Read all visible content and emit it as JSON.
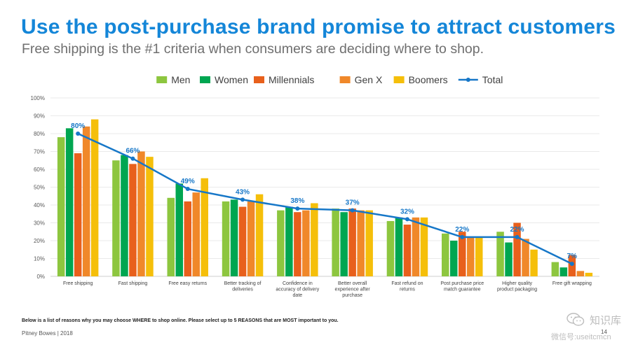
{
  "slide": {
    "title": "Use the post-purchase brand promise to attract customers",
    "subtitle": "Free shipping is the #1 criteria when consumers are deciding where to shop.",
    "question": "Below is a list of reasons why you may choose WHERE to shop online. Please select up to 5 REASONS that are MOST important to you.",
    "footer": "Pitney Bowes | 2018",
    "page_number": "14"
  },
  "watermark": {
    "brand": "知识库",
    "id_text": "微信号:useitcmcn",
    "icon": "wechat-icon"
  },
  "chart_data": {
    "type": "bar",
    "categories": [
      [
        "Free shipping"
      ],
      [
        "Fast shipping"
      ],
      [
        "Free easy returns"
      ],
      [
        "Better tracking of",
        "deliveries"
      ],
      [
        "Confidence in",
        "accuracy of delivery",
        "date"
      ],
      [
        "Better overall",
        "experience after",
        "purchase"
      ],
      [
        "Fast refund on",
        "returns"
      ],
      [
        "Post purchase price",
        "match guarantee"
      ],
      [
        "Higher quality",
        "product packaging"
      ],
      [
        "Free gift wrapping"
      ]
    ],
    "series": [
      {
        "name": "Men",
        "color": "#8dc63f",
        "values": [
          78,
          65,
          44,
          42,
          37,
          38,
          31,
          24,
          25,
          8
        ]
      },
      {
        "name": "Women",
        "color": "#00a651",
        "values": [
          83,
          68,
          52,
          43,
          39,
          36,
          33,
          20,
          19,
          5
        ]
      },
      {
        "name": "Millennials",
        "color": "#e8601c",
        "values": [
          69,
          63,
          42,
          39,
          36,
          38,
          29,
          25,
          30,
          12
        ]
      },
      {
        "name": "Gen X",
        "color": "#f0882a",
        "values": [
          84,
          70,
          47,
          42,
          37,
          37,
          33,
          22,
          21,
          3
        ]
      },
      {
        "name": "Boomers",
        "color": "#f5bf0a",
        "values": [
          88,
          67,
          55,
          46,
          41,
          37,
          33,
          22,
          15,
          2
        ]
      }
    ],
    "line": {
      "name": "Total",
      "color": "#1677c8",
      "values": [
        80,
        66,
        49,
        43,
        38,
        37,
        32,
        22,
        22,
        7
      ],
      "labels": [
        "80%",
        "66%",
        "49%",
        "43%",
        "38%",
        "37%",
        "32%",
        "22%",
        "22%",
        "7%"
      ]
    },
    "y_ticks": [
      "0%",
      "10%",
      "20%",
      "30%",
      "40%",
      "50%",
      "60%",
      "70%",
      "80%",
      "90%",
      "100%"
    ],
    "ylim": [
      0,
      100
    ],
    "grid": true,
    "legend_position": "top-center"
  }
}
